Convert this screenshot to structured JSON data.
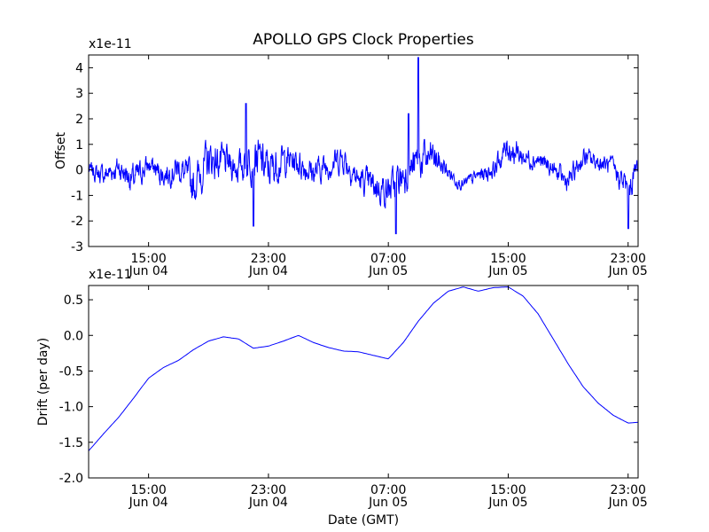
{
  "figure_title": "APOLLO GPS Clock Properties",
  "colors": {
    "line": "#0000ff",
    "axes": "#000000",
    "background": "#ffffff"
  },
  "chart_data": [
    {
      "type": "line",
      "title": "APOLLO GPS Clock Properties",
      "ylabel": "Offset",
      "xlabel": "",
      "scale_label": "x1e-11",
      "ylim": [
        -3,
        4.5
      ],
      "xlim": [
        "2013-06-04 11:00",
        "2013-06-05 23:40"
      ],
      "yticks": [
        "-3",
        "-2",
        "-1",
        "0",
        "1",
        "2",
        "3",
        "4"
      ],
      "xticks": [
        {
          "time": "2013-06-04 15:00",
          "label": "15:00",
          "date": "Jun 04"
        },
        {
          "time": "2013-06-04 23:00",
          "label": "23:00",
          "date": "Jun 04"
        },
        {
          "time": "2013-06-05 07:00",
          "label": "07:00",
          "date": "Jun 05"
        },
        {
          "time": "2013-06-05 15:00",
          "label": "15:00",
          "date": "Jun 05"
        },
        {
          "time": "2013-06-05 23:00",
          "label": "23:00",
          "date": "Jun 05"
        }
      ],
      "grid": false,
      "series": [
        {
          "x": [
            "2013-06-04 11:00",
            "2013-06-04 12:00",
            "2013-06-04 13:00",
            "2013-06-04 14:00",
            "2013-06-04 15:00",
            "2013-06-04 16:00",
            "2013-06-04 17:00",
            "2013-06-04 18:00",
            "2013-06-04 19:00",
            "2013-06-04 20:00",
            "2013-06-04 21:00",
            "2013-06-04 22:00",
            "2013-06-04 23:00",
            "2013-06-05 00:00",
            "2013-06-05 01:00",
            "2013-06-05 02:00",
            "2013-06-05 03:00",
            "2013-06-05 04:00",
            "2013-06-05 05:00",
            "2013-06-05 06:00",
            "2013-06-05 07:00",
            "2013-06-05 08:00",
            "2013-06-05 09:00",
            "2013-06-05 10:00",
            "2013-06-05 11:00",
            "2013-06-05 12:00",
            "2013-06-05 13:00",
            "2013-06-05 14:00",
            "2013-06-05 15:00",
            "2013-06-05 16:00",
            "2013-06-05 17:00",
            "2013-06-05 18:00",
            "2013-06-05 19:00",
            "2013-06-05 20:00",
            "2013-06-05 21:00",
            "2013-06-05 22:00",
            "2013-06-05 23:00",
            "2013-06-05 23:40"
          ],
          "y": [
            0.0,
            -0.2,
            0.1,
            -0.4,
            0.2,
            -0.2,
            0.1,
            -0.6,
            0.4,
            0.3,
            0.1,
            0.6,
            0.0,
            0.4,
            0.3,
            -0.1,
            0.2,
            0.5,
            -0.4,
            -0.6,
            -0.8,
            -0.2,
            0.3,
            0.5,
            -0.1,
            -0.6,
            -0.2,
            0.0,
            0.9,
            0.5,
            0.4,
            0.0,
            -0.5,
            0.5,
            0.3,
            0.1,
            -0.8,
            0.2
          ],
          "envelope": [
            0.5,
            0.7,
            0.8,
            1.0,
            0.7,
            0.8,
            0.9,
            1.3,
            1.3,
            1.1,
            1.0,
            1.5,
            1.4,
            1.0,
            1.0,
            0.9,
            0.9,
            1.0,
            0.9,
            1.0,
            1.1,
            1.2,
            1.3,
            1.1,
            0.5,
            0.4,
            0.5,
            0.6,
            1.0,
            0.7,
            0.6,
            0.6,
            0.7,
            0.7,
            0.6,
            0.6,
            1.0,
            0.8
          ],
          "spikes": [
            {
              "x": "2013-06-04 21:30",
              "y": 2.6
            },
            {
              "x": "2013-06-04 22:00",
              "y": -2.2
            },
            {
              "x": "2013-06-05 07:30",
              "y": -2.5
            },
            {
              "x": "2013-06-05 08:20",
              "y": 2.2
            },
            {
              "x": "2013-06-05 09:00",
              "y": 4.4
            },
            {
              "x": "2013-06-05 23:00",
              "y": -2.3
            }
          ]
        }
      ]
    },
    {
      "type": "line",
      "title": "",
      "ylabel": "Drift (per day)",
      "xlabel": "Date (GMT)",
      "scale_label": "x1e-11",
      "ylim": [
        -2.0,
        0.7
      ],
      "xlim": [
        "2013-06-04 11:00",
        "2013-06-05 23:40"
      ],
      "yticks": [
        "-2.0",
        "-1.5",
        "-1.0",
        "-0.5",
        "0.0",
        "0.5"
      ],
      "xticks": [
        {
          "time": "2013-06-04 15:00",
          "label": "15:00",
          "date": "Jun 04"
        },
        {
          "time": "2013-06-04 23:00",
          "label": "23:00",
          "date": "Jun 04"
        },
        {
          "time": "2013-06-05 07:00",
          "label": "07:00",
          "date": "Jun 05"
        },
        {
          "time": "2013-06-05 15:00",
          "label": "15:00",
          "date": "Jun 05"
        },
        {
          "time": "2013-06-05 23:00",
          "label": "23:00",
          "date": "Jun 05"
        }
      ],
      "grid": false,
      "series": [
        {
          "x": [
            "2013-06-04 11:00",
            "2013-06-04 12:00",
            "2013-06-04 13:00",
            "2013-06-04 14:00",
            "2013-06-04 15:00",
            "2013-06-04 16:00",
            "2013-06-04 17:00",
            "2013-06-04 18:00",
            "2013-06-04 19:00",
            "2013-06-04 20:00",
            "2013-06-04 21:00",
            "2013-06-04 22:00",
            "2013-06-04 23:00",
            "2013-06-05 00:00",
            "2013-06-05 01:00",
            "2013-06-05 02:00",
            "2013-06-05 03:00",
            "2013-06-05 04:00",
            "2013-06-05 05:00",
            "2013-06-05 06:00",
            "2013-06-05 07:00",
            "2013-06-05 08:00",
            "2013-06-05 09:00",
            "2013-06-05 10:00",
            "2013-06-05 11:00",
            "2013-06-05 12:00",
            "2013-06-05 13:00",
            "2013-06-05 14:00",
            "2013-06-05 15:00",
            "2013-06-05 16:00",
            "2013-06-05 17:00",
            "2013-06-05 18:00",
            "2013-06-05 19:00",
            "2013-06-05 20:00",
            "2013-06-05 21:00",
            "2013-06-05 22:00",
            "2013-06-05 23:00",
            "2013-06-05 23:40"
          ],
          "y": [
            -1.62,
            -1.38,
            -1.15,
            -0.88,
            -0.6,
            -0.45,
            -0.35,
            -0.2,
            -0.08,
            -0.02,
            -0.05,
            -0.18,
            -0.15,
            -0.08,
            0.0,
            -0.1,
            -0.17,
            -0.22,
            -0.23,
            -0.28,
            -0.33,
            -0.1,
            0.2,
            0.45,
            0.62,
            0.68,
            0.62,
            0.67,
            0.68,
            0.55,
            0.3,
            -0.05,
            -0.4,
            -0.72,
            -0.95,
            -1.12,
            -1.23,
            -1.22
          ]
        }
      ]
    }
  ]
}
